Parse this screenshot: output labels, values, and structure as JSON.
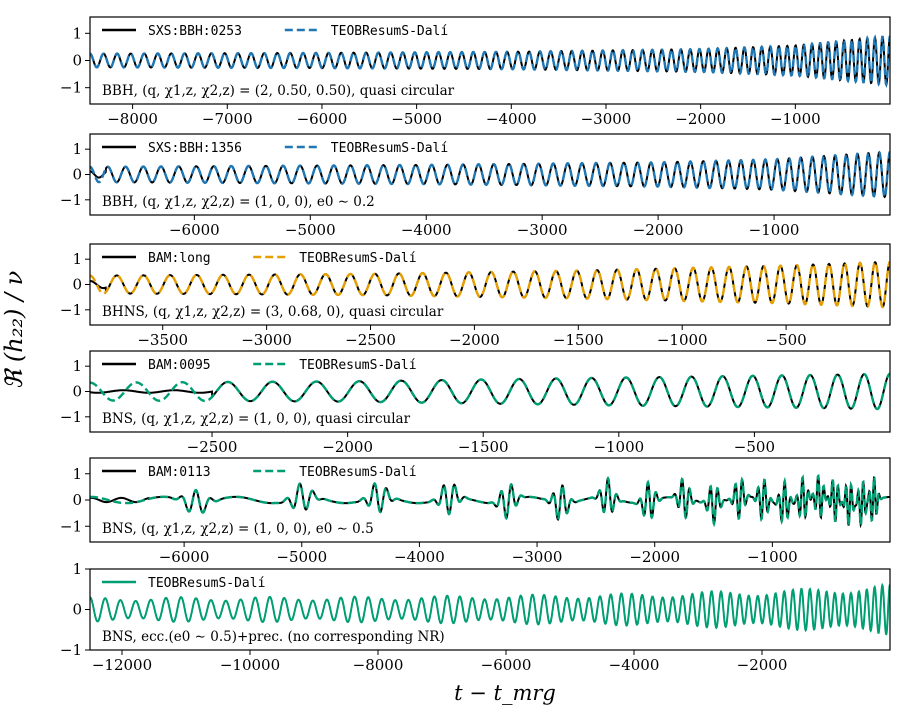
{
  "figure": {
    "ylabel": "ℜ (h₂₂) / ν",
    "xlabel": "t − t_mrg"
  },
  "chart_data": [
    {
      "type": "line",
      "xlim": [
        -8450,
        0
      ],
      "ylim": [
        -1.6,
        1.6
      ],
      "xticks": [
        -8000,
        -7000,
        -6000,
        -5000,
        -4000,
        -3000,
        -2000,
        -1000
      ],
      "xtick_labels": [
        "−8000",
        "−7000",
        "−6000",
        "−5000",
        "−4000",
        "−3000",
        "−2000",
        "−1000"
      ],
      "yticks": [
        -1,
        0,
        1
      ],
      "ytick_labels": [
        "−1",
        "0",
        "1"
      ],
      "annotation": "BBH,   (q, χ1,z, χ2,z) = (2, 0.50, 0.50),  quasi circular",
      "series": [
        {
          "name": "SXS:BBH:0253",
          "style": "solid",
          "color": "#000000",
          "amplitude": [
            [
              -8450,
              0.25
            ],
            [
              -6000,
              0.28
            ],
            [
              -4000,
              0.32
            ],
            [
              -2000,
              0.42
            ],
            [
              -1000,
              0.55
            ],
            [
              0,
              0.9
            ]
          ],
          "cycles": 75,
          "f0_frac": 0.55,
          "initial_glitch": false
        },
        {
          "name": "TEOBResumS-Dalí",
          "style": "dashed",
          "color": "#1f77b4",
          "amplitude": [
            [
              -8450,
              0.25
            ],
            [
              -6000,
              0.28
            ],
            [
              -4000,
              0.32
            ],
            [
              -2000,
              0.42
            ],
            [
              -1000,
              0.55
            ],
            [
              0,
              0.9
            ]
          ],
          "cycles": 75,
          "f0_frac": 0.55
        }
      ]
    },
    {
      "type": "line",
      "xlim": [
        -6900,
        0
      ],
      "ylim": [
        -1.6,
        1.6
      ],
      "xticks": [
        -6000,
        -5000,
        -4000,
        -3000,
        -2000,
        -1000
      ],
      "xtick_labels": [
        "−6000",
        "−5000",
        "−4000",
        "−3000",
        "−2000",
        "−1000"
      ],
      "yticks": [
        -1,
        0,
        1
      ],
      "ytick_labels": [
        "−1",
        "0",
        "1"
      ],
      "annotation": "BBH,   (q, χ1,z, χ2,z) = (1, 0, 0),  e0 ∼ 0.2",
      "series": [
        {
          "name": "SXS:BBH:1356",
          "style": "solid",
          "color": "#000000",
          "amplitude": [
            [
              -6900,
              0.3
            ],
            [
              -4000,
              0.38
            ],
            [
              -2000,
              0.48
            ],
            [
              -1000,
              0.6
            ],
            [
              0,
              0.9
            ]
          ],
          "cycles": 55,
          "f0_frac": 0.6,
          "initial_glitch": true
        },
        {
          "name": "TEOBResumS-Dalí",
          "style": "dashed",
          "color": "#1f77b4",
          "amplitude": [
            [
              -6900,
              0.3
            ],
            [
              -4000,
              0.38
            ],
            [
              -2000,
              0.48
            ],
            [
              -1000,
              0.6
            ],
            [
              0,
              0.9
            ]
          ],
          "cycles": 55,
          "f0_frac": 0.6
        }
      ]
    },
    {
      "type": "line",
      "xlim": [
        -3850,
        0
      ],
      "ylim": [
        -1.6,
        1.6
      ],
      "xticks": [
        -3500,
        -3000,
        -2500,
        -2000,
        -1500,
        -1000,
        -500
      ],
      "xtick_labels": [
        "−3500",
        "−3000",
        "−2500",
        "−2000",
        "−1500",
        "−1000",
        "−500"
      ],
      "yticks": [
        -1,
        0,
        1
      ],
      "ytick_labels": [
        "−1",
        "0",
        "1"
      ],
      "annotation": "BHNS,   (q, χ1,z, χ2,z) = (3, 0.68, 0),  quasi circular",
      "series": [
        {
          "name": "BAM:long",
          "style": "solid",
          "color": "#000000",
          "amplitude": [
            [
              -3850,
              0.35
            ],
            [
              -2500,
              0.42
            ],
            [
              -1500,
              0.55
            ],
            [
              -500,
              0.75
            ],
            [
              0,
              0.9
            ]
          ],
          "cycles": 38,
          "f0_frac": 0.55,
          "initial_glitch": true
        },
        {
          "name": "TEOBResumS-Dalí",
          "style": "dashed",
          "color": "#e69f00",
          "amplitude": [
            [
              -3850,
              0.35
            ],
            [
              -2500,
              0.42
            ],
            [
              -1500,
              0.55
            ],
            [
              -500,
              0.75
            ],
            [
              0,
              0.9
            ]
          ],
          "cycles": 38,
          "f0_frac": 0.55
        }
      ]
    },
    {
      "type": "line",
      "xlim": [
        -2950,
        0
      ],
      "ylim": [
        -1.6,
        1.6
      ],
      "xticks": [
        -2500,
        -2000,
        -1500,
        -1000,
        -500
      ],
      "xtick_labels": [
        "−2500",
        "−2000",
        "−1500",
        "−1000",
        "−500"
      ],
      "yticks": [
        -1,
        0,
        1
      ],
      "ytick_labels": [
        "−1",
        "0",
        "1"
      ],
      "annotation": "BNS,   (q, χ1,z, χ2,z) = (1, 0, 0),  quasi circular",
      "series": [
        {
          "name": "BAM:0095",
          "style": "solid",
          "color": "#000000",
          "amplitude": [
            [
              -2950,
              0.35
            ],
            [
              -2000,
              0.4
            ],
            [
              -1000,
              0.55
            ],
            [
              -300,
              0.65
            ],
            [
              0,
              0.7
            ]
          ],
          "cycles": 22,
          "f0_frac": 0.55,
          "nr_start": -2500
        },
        {
          "name": "TEOBResumS-Dalí",
          "style": "dashed",
          "color": "#009e73",
          "amplitude": [
            [
              -2950,
              0.35
            ],
            [
              -2000,
              0.4
            ],
            [
              -1000,
              0.55
            ],
            [
              -300,
              0.65
            ],
            [
              0,
              0.7
            ]
          ],
          "cycles": 22,
          "f0_frac": 0.55
        }
      ]
    },
    {
      "type": "line",
      "xlim": [
        -6800,
        0
      ],
      "ylim": [
        -1.6,
        1.6
      ],
      "xticks": [
        -6000,
        -5000,
        -4000,
        -3000,
        -2000,
        -1000
      ],
      "xtick_labels": [
        "−6000",
        "−5000",
        "−4000",
        "−3000",
        "−2000",
        "−1000"
      ],
      "yticks": [
        -1,
        0,
        1
      ],
      "ytick_labels": [
        "−1",
        "0",
        "1"
      ],
      "annotation": "BNS,   (q, χ1,z, χ2,z) = (1, 0, 0),  e0 ∼ 0.5",
      "series": [
        {
          "name": "BAM:0113",
          "style": "solid",
          "color": "#000000",
          "eccentric": true,
          "bursts": [
            -5900,
            -5000,
            -4350,
            -3750,
            -3250,
            -2800,
            -2400,
            -2050,
            -1750,
            -1500,
            -1280,
            -1080,
            -900,
            -740,
            -600,
            -470,
            -350,
            -240,
            -140
          ],
          "nr_start": -6300
        },
        {
          "name": "TEOBResumS-Dalí",
          "style": "dashed",
          "color": "#009e73",
          "eccentric": true,
          "bursts": [
            -5900,
            -5000,
            -4350,
            -3750,
            -3250,
            -2800,
            -2400,
            -2050,
            -1750,
            -1500,
            -1280,
            -1080,
            -900,
            -740,
            -600,
            -470,
            -350,
            -240,
            -140
          ]
        }
      ]
    },
    {
      "type": "line",
      "xlim": [
        -12500,
        0
      ],
      "ylim": [
        -1.0,
        1.0
      ],
      "xticks": [
        -12000,
        -10000,
        -8000,
        -6000,
        -4000,
        -2000
      ],
      "xtick_labels": [
        "−12000",
        "−10000",
        "−8000",
        "−6000",
        "−4000",
        "−2000"
      ],
      "yticks": [
        -1,
        0,
        1
      ],
      "ytick_labels": [
        "−1",
        "0",
        "1"
      ],
      "annotation": "BNS,  ecc.(e0 ∼ 0.5)+prec. (no corresponding NR)",
      "series": [
        {
          "name": "TEOBResumS-Dalí",
          "style": "solid",
          "color": "#009e73",
          "amplitude": [
            [
              -12500,
              0.3
            ],
            [
              -8000,
              0.32
            ],
            [
              -4000,
              0.4
            ],
            [
              -1500,
              0.5
            ],
            [
              0,
              0.62
            ]
          ],
          "cycles": 70,
          "f0_frac": 0.5,
          "modulated": true
        }
      ]
    }
  ]
}
